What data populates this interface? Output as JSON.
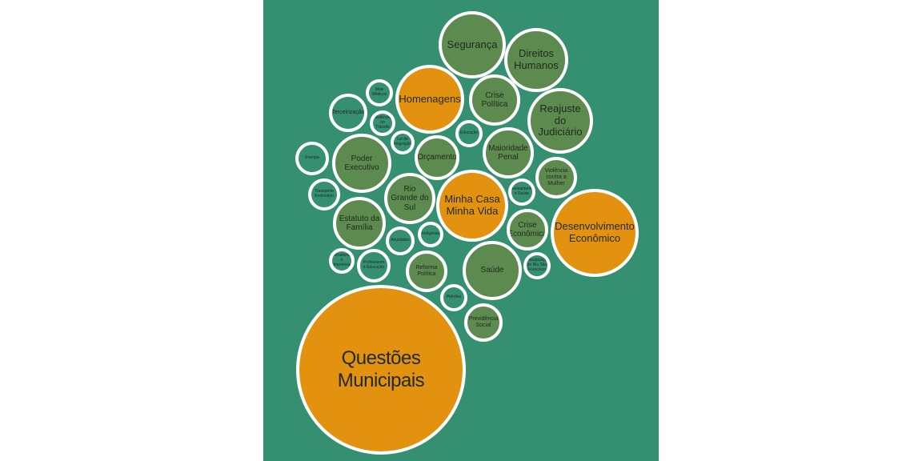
{
  "colors": {
    "background": "#358f71",
    "orange": "#e2920f",
    "green": "#5c8a4f",
    "teal": "#358f71",
    "border": "#ffffff"
  },
  "bubbles": [
    {
      "id": "questoes-municipais",
      "label": "Questões Municipais",
      "fill": "orange"
    },
    {
      "id": "desenvolvimento-economico",
      "label": "Desenvolvimento Econômico",
      "fill": "orange"
    },
    {
      "id": "minha-casa-minha-vida",
      "label": "Minha Casa Minha Vida",
      "fill": "orange"
    },
    {
      "id": "homenagens",
      "label": "Homenagens",
      "fill": "orange"
    },
    {
      "id": "seguranca",
      "label": "Segurança",
      "fill": "green"
    },
    {
      "id": "direitos-humanos",
      "label": "Direitos Humanos",
      "fill": "green"
    },
    {
      "id": "reajuste-judiciario",
      "label": "Reajuste do Judiciário",
      "fill": "green"
    },
    {
      "id": "crise-politica",
      "label": "Crise Política",
      "fill": "green"
    },
    {
      "id": "maioridade-penal",
      "label": "Maioridade Penal",
      "fill": "green"
    },
    {
      "id": "poder-executivo",
      "label": "Poder Executivo",
      "fill": "green"
    },
    {
      "id": "orcamento",
      "label": "Orçamento",
      "fill": "green"
    },
    {
      "id": "rio-grande-do-sul",
      "label": "Rio Grande do Sul",
      "fill": "green"
    },
    {
      "id": "estatuto-familia",
      "label": "Estatuto da Família",
      "fill": "green"
    },
    {
      "id": "saude",
      "label": "Saúde",
      "fill": "green"
    },
    {
      "id": "crise-economica",
      "label": "Crise Econômica",
      "fill": "green"
    },
    {
      "id": "violencia-mulher",
      "label": "Violência contra a Mulher",
      "fill": "green"
    },
    {
      "id": "reforma-politica",
      "label": "Reforma Política",
      "fill": "green"
    },
    {
      "id": "previdencia-social",
      "label": "Previdência Social",
      "fill": "green"
    },
    {
      "id": "terceirizacao",
      "label": "Terceirização",
      "fill": "teal"
    },
    {
      "id": "mais-medicos",
      "label": "Mais Médicos",
      "fill": "teal"
    },
    {
      "id": "violencia-transito",
      "label": "Violência no Trânsito",
      "fill": "teal"
    },
    {
      "id": "lei-imigracao",
      "label": "Lei de imigração",
      "fill": "teal"
    },
    {
      "id": "educacao",
      "label": "Educação",
      "fill": "teal"
    },
    {
      "id": "energia",
      "label": "Energia",
      "fill": "teal"
    },
    {
      "id": "transporte-rodoviario",
      "label": "Transporte Rodoviário",
      "fill": "teal"
    },
    {
      "id": "saneamento-saude",
      "label": "Saneamento e Saúde",
      "fill": "teal"
    },
    {
      "id": "indigenas",
      "label": "Indígenas",
      "fill": "teal"
    },
    {
      "id": "anuidades",
      "label": "Anuidades",
      "fill": "teal"
    },
    {
      "id": "jornalismo-imprensa",
      "label": "Jornalismo e Imprensa",
      "fill": "teal"
    },
    {
      "id": "professores-educacao",
      "label": "Professores e Educação",
      "fill": "teal"
    },
    {
      "id": "transposicao-rio-sao-francisco",
      "label": "Transposição do Rio São Francisco",
      "fill": "teal"
    },
    {
      "id": "petroleo",
      "label": "Petróleo",
      "fill": "teal"
    }
  ]
}
